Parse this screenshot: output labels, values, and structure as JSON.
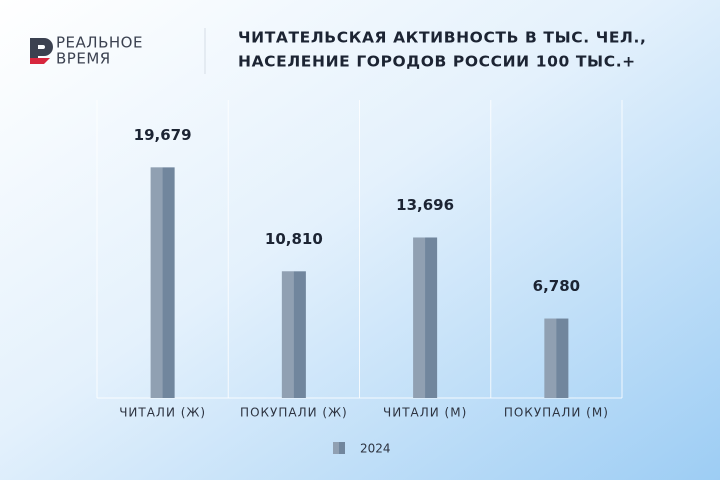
{
  "logo": [
    "РЕАЛЬНОЕ",
    "ВРЕМЯ"
  ],
  "chart_data": {
    "type": "bar",
    "title_lines": [
      "ЧИТАТЕЛЬСКАЯ АКТИВНОСТЬ В ТЫС. ЧЕЛ.,",
      "НАСЕЛЕНИЕ ГОРОДОВ РОССИИ 100 ТЫС.+"
    ],
    "categories": [
      "ЧИТАЛИ (Ж)",
      "ПОКУПАЛИ (Ж)",
      "ЧИТАЛИ (М)",
      "ПОКУПАЛИ (М)"
    ],
    "series": [
      {
        "name": "2024",
        "color": "#71869d",
        "values": [
          19679,
          10810,
          13696,
          6780
        ],
        "value_labels": [
          "19,679",
          "10,810",
          "13,696",
          "6,780"
        ]
      }
    ],
    "ylim": [
      0,
      25000
    ]
  }
}
